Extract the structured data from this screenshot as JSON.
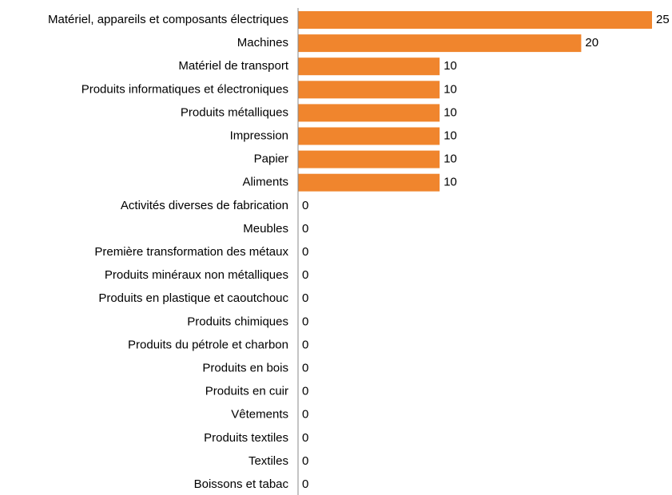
{
  "chart_data": {
    "type": "bar",
    "orientation": "horizontal",
    "categories": [
      "Matériel, appareils et composants électriques",
      "Machines",
      "Matériel de transport",
      "Produits informatiques et électroniques",
      "Produits métalliques",
      "Impression",
      "Papier",
      "Aliments",
      "Activités diverses de fabrication",
      "Meubles",
      "Première transformation des métaux",
      "Produits minéraux non métalliques",
      "Produits en plastique et caoutchouc",
      "Produits chimiques",
      "Produits du pétrole et charbon",
      "Produits en bois",
      "Produits en cuir",
      "Vêtements",
      "Produits textiles",
      "Textiles",
      "Boissons et tabac"
    ],
    "values": [
      25,
      20,
      10,
      10,
      10,
      10,
      10,
      10,
      0,
      0,
      0,
      0,
      0,
      0,
      0,
      0,
      0,
      0,
      0,
      0,
      0
    ],
    "color": "#f0852d",
    "xlim": [
      0,
      25
    ]
  }
}
